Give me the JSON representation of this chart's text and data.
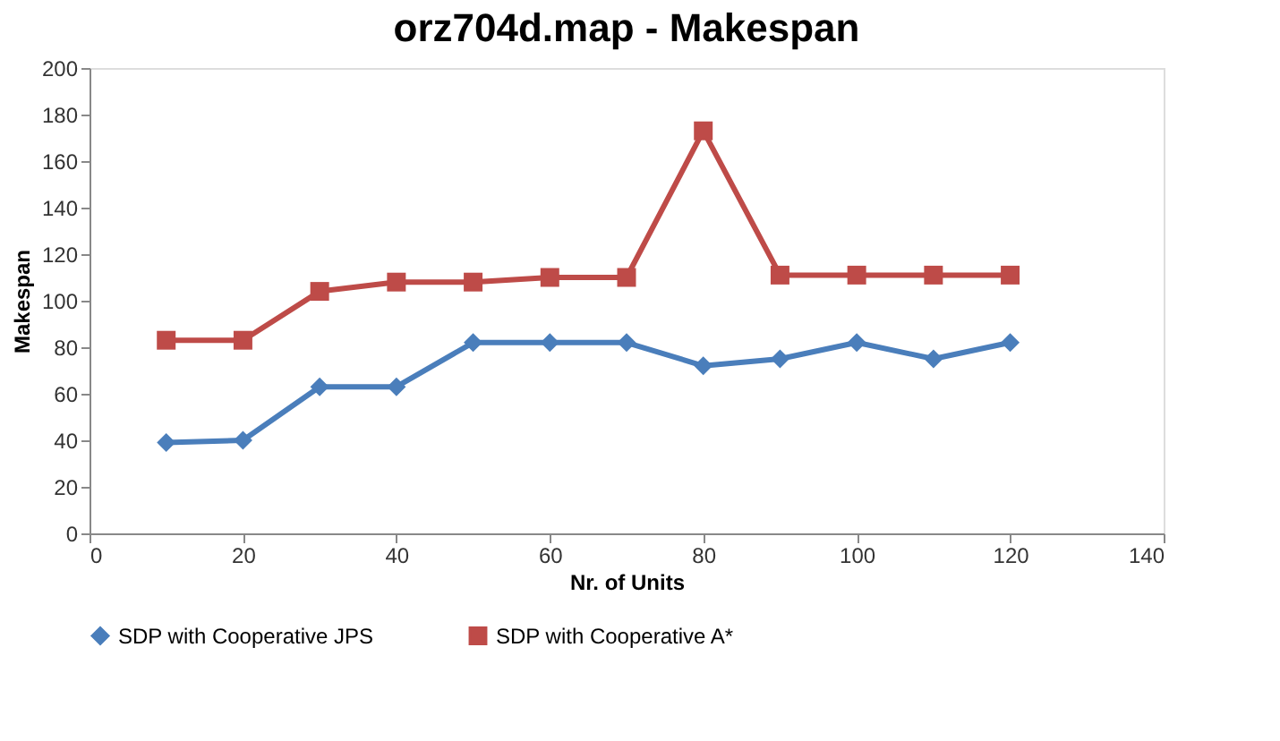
{
  "chart_data": {
    "type": "line",
    "title": "orz704d.map - Makespan",
    "xlabel": "Nr. of Units",
    "ylabel": "Makespan",
    "x": [
      10,
      20,
      30,
      40,
      50,
      60,
      70,
      80,
      90,
      100,
      110,
      120
    ],
    "xlim": [
      0,
      140
    ],
    "xticks": [
      0,
      20,
      40,
      60,
      80,
      100,
      120,
      140
    ],
    "ylim": [
      0,
      200
    ],
    "yticks": [
      0,
      20,
      40,
      60,
      80,
      100,
      120,
      140,
      160,
      180,
      200
    ],
    "grid": false,
    "legend": "bottom",
    "line_style": "solid",
    "series": [
      {
        "name": "SDP with Cooperative JPS",
        "color": "#4a7ebb",
        "marker": "diamond",
        "values": [
          39,
          40,
          63,
          63,
          82,
          82,
          82,
          72,
          75,
          82,
          75,
          82
        ]
      },
      {
        "name": "SDP with Cooperative A*",
        "color": "#be4b48",
        "marker": "square",
        "values": [
          83,
          83,
          104,
          108,
          108,
          110,
          110,
          173,
          111,
          111,
          111,
          111
        ]
      }
    ]
  }
}
